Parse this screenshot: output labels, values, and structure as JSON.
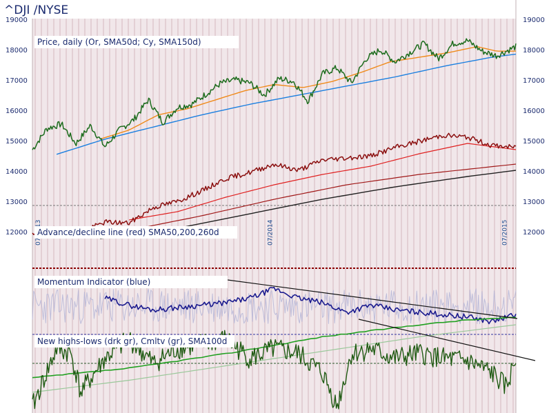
{
  "header": {
    "title": "^DJI /NYSE"
  },
  "colors": {
    "background": "#ffffff",
    "plot_bg": "#f1e7ea",
    "stripe": "#e3cfd4",
    "price": "#1b6b1b",
    "sma50": "#f08a1a",
    "sma150": "#1a7fe0",
    "ad": "#8b0f0f",
    "ad_sma50": "#e02020",
    "ad_sma200": "#a01818",
    "ad_sma260": "#202020",
    "momentum": "#1a1a8e",
    "momentum_raw": "#b8b8d8",
    "nh": "#1f5a12",
    "cum": "#20a020",
    "cum_sma": "#9ac89a",
    "trend": "#111111",
    "ref_red": "#8b0000",
    "ref_blue": "#3030a0",
    "ref_green": "#2a5a2a"
  },
  "chart_data": [
    {
      "type": "line",
      "panel": "price",
      "label": "Price, daily (Or, SMA50d; Cy, SMA150d)",
      "y_ticks": [
        "19000",
        "18000",
        "17000",
        "16000",
        "15000",
        "14000",
        "13000",
        "12000"
      ],
      "ylim": [
        12000,
        19000
      ],
      "x_tick_labels": [
        "07/2013",
        "07/2014",
        "07/2015"
      ],
      "series": [
        {
          "name": "Price",
          "x": [
            0,
            0.03,
            0.06,
            0.09,
            0.12,
            0.15,
            0.18,
            0.21,
            0.24,
            0.27,
            0.3,
            0.33,
            0.36,
            0.39,
            0.42,
            0.45,
            0.48,
            0.51,
            0.54,
            0.57,
            0.6,
            0.63,
            0.66,
            0.69,
            0.72,
            0.75,
            0.78,
            0.81,
            0.84,
            0.87,
            0.9,
            0.93,
            0.96,
            1.0
          ],
          "values": [
            14700,
            15400,
            15550,
            14900,
            15500,
            14800,
            15350,
            15700,
            16350,
            15600,
            16100,
            16200,
            16550,
            16900,
            17000,
            16900,
            16500,
            17050,
            16950,
            16300,
            17200,
            17400,
            16900,
            17700,
            18000,
            17600,
            17900,
            18200,
            17700,
            18200,
            18300,
            17950,
            17800,
            18100
          ]
        },
        {
          "name": "SMA50d",
          "x": [
            0.14,
            0.2,
            0.26,
            0.32,
            0.38,
            0.44,
            0.5,
            0.56,
            0.62,
            0.68,
            0.74,
            0.8,
            0.86,
            0.92,
            0.96,
            1.0
          ],
          "values": [
            15050,
            15350,
            15850,
            16050,
            16350,
            16650,
            16850,
            16750,
            16950,
            17250,
            17600,
            17750,
            17900,
            18100,
            17950,
            17950
          ]
        },
        {
          "name": "SMA150d",
          "x": [
            0.05,
            0.15,
            0.25,
            0.35,
            0.45,
            0.55,
            0.65,
            0.75,
            0.85,
            0.95,
            1.0
          ],
          "values": [
            14550,
            15050,
            15450,
            15850,
            16200,
            16500,
            16800,
            17100,
            17450,
            17750,
            17850
          ]
        }
      ]
    },
    {
      "type": "line",
      "panel": "advance_decline",
      "label": "Advance/decline line (red) SMA50,200,260d",
      "series": [
        {
          "name": "Advance/decline line",
          "x": [
            0,
            0.05,
            0.1,
            0.15,
            0.2,
            0.25,
            0.3,
            0.35,
            0.4,
            0.45,
            0.5,
            0.55,
            0.6,
            0.65,
            0.7,
            0.75,
            0.8,
            0.85,
            0.9,
            0.95,
            1.0
          ],
          "values": [
            0.03,
            0.1,
            0.06,
            0.16,
            0.15,
            0.3,
            0.36,
            0.46,
            0.58,
            0.64,
            0.72,
            0.66,
            0.76,
            0.78,
            0.8,
            0.88,
            0.94,
            1.0,
            0.98,
            0.9,
            0.88
          ]
        },
        {
          "name": "SMA50",
          "x": [
            0.2,
            0.3,
            0.4,
            0.5,
            0.6,
            0.7,
            0.8,
            0.9,
            1.0
          ],
          "values": [
            0.18,
            0.26,
            0.4,
            0.52,
            0.62,
            0.7,
            0.82,
            0.92,
            0.86
          ]
        },
        {
          "name": "SMA200",
          "x": [
            0.08,
            0.2,
            0.35,
            0.5,
            0.65,
            0.8,
            1.0
          ],
          "values": [
            0.02,
            0.08,
            0.22,
            0.38,
            0.52,
            0.62,
            0.72
          ]
        },
        {
          "name": "SMA260",
          "x": [
            0.14,
            0.3,
            0.45,
            0.6,
            0.75,
            0.9,
            1.0
          ],
          "values": [
            0.0,
            0.1,
            0.24,
            0.38,
            0.5,
            0.6,
            0.66
          ]
        }
      ]
    },
    {
      "type": "line",
      "panel": "momentum",
      "label": "Momentum Indicator (blue)",
      "series": [
        {
          "name": "Momentum",
          "x": [
            0.15,
            0.2,
            0.25,
            0.3,
            0.35,
            0.4,
            0.45,
            0.5,
            0.55,
            0.6,
            0.65,
            0.7,
            0.75,
            0.8,
            0.85,
            0.9,
            0.95,
            1.0
          ],
          "values": [
            0.7,
            0.55,
            0.45,
            0.5,
            0.55,
            0.6,
            0.7,
            0.9,
            0.7,
            0.6,
            0.4,
            0.55,
            0.45,
            0.4,
            0.35,
            0.3,
            0.2,
            0.35
          ]
        }
      ]
    },
    {
      "type": "line",
      "panel": "new_highs_lows",
      "label": "New highs-lows (drk gr), Cmltv (gr), SMA100d",
      "series": [
        {
          "name": "New highs-lows",
          "x": [
            0,
            0.05,
            0.08,
            0.1,
            0.15,
            0.2,
            0.25,
            0.3,
            0.35,
            0.4,
            0.45,
            0.5,
            0.55,
            0.6,
            0.63,
            0.66,
            0.7,
            0.75,
            0.8,
            0.85,
            0.9,
            0.95,
            0.98,
            1.0
          ],
          "values": [
            -0.9,
            0.3,
            0.2,
            -0.6,
            0.1,
            0.5,
            0.0,
            0.3,
            0.4,
            0.5,
            0.1,
            0.3,
            0.2,
            -0.2,
            -0.9,
            0.2,
            0.3,
            0.1,
            0.2,
            0.1,
            0.05,
            -0.2,
            -0.5,
            0.1
          ]
        },
        {
          "name": "Cmltv",
          "x": [
            0,
            0.2,
            0.4,
            0.6,
            0.8,
            0.9,
            1.0
          ],
          "values": [
            -0.3,
            -0.1,
            0.2,
            0.55,
            0.8,
            0.9,
            0.95
          ]
        },
        {
          "name": "SMA100d",
          "x": [
            0,
            0.2,
            0.4,
            0.6,
            0.8,
            1.0
          ],
          "values": [
            -0.6,
            -0.35,
            -0.05,
            0.25,
            0.55,
            0.8
          ]
        }
      ]
    }
  ]
}
